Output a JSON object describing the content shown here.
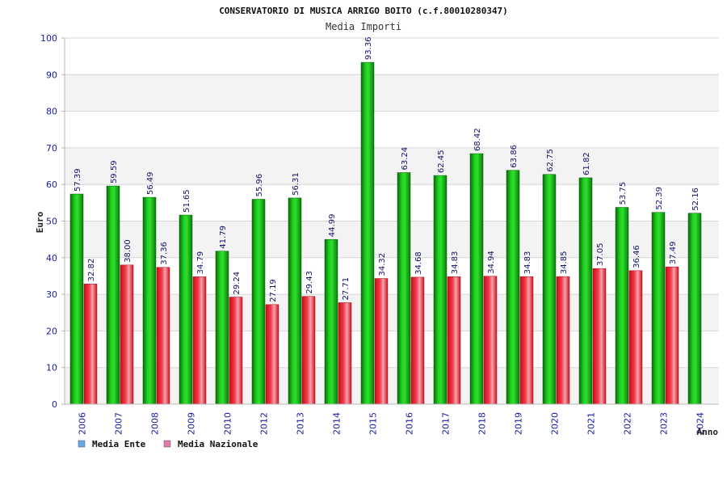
{
  "chart_data": {
    "type": "bar",
    "title": "CONSERVATORIO DI MUSICA ARRIGO BOITO (c.f.80010280347)",
    "subtitle": "Media Importi",
    "ylabel": "Euro",
    "xlabel": "Anno",
    "ylim": [
      0,
      100
    ],
    "yticks": [
      "0",
      "10",
      "20",
      "30",
      "40",
      "50",
      "60",
      "70",
      "80",
      "90",
      "100"
    ],
    "grid": true,
    "legend_position": "bottom-left",
    "categories": [
      "2006",
      "2007",
      "2008",
      "2009",
      "2010",
      "2012",
      "2013",
      "2014",
      "2015",
      "2016",
      "2017",
      "2018",
      "2019",
      "2020",
      "2021",
      "2022",
      "2023",
      "2024"
    ],
    "series": [
      {
        "name": "Media Ente",
        "color": "#22bb22",
        "legend_color": "#6aa7e8",
        "values": [
          57.39,
          59.59,
          56.49,
          51.65,
          41.79,
          55.96,
          56.31,
          44.99,
          93.36,
          63.24,
          62.45,
          68.42,
          63.86,
          62.75,
          61.82,
          53.75,
          52.39,
          52.16
        ],
        "labels": [
          "57.39",
          "59.59",
          "56.49",
          "51.65",
          "41.79",
          "55.96",
          "56.31",
          "44.99",
          "93.36",
          "63.24",
          "62.45",
          "68.42",
          "63.86",
          "62.75",
          "61.82",
          "53.75",
          "52.39",
          "52.16"
        ]
      },
      {
        "name": "Media Nazionale",
        "color": "#e8182a",
        "legend_color": "#e07aa8",
        "values": [
          32.82,
          38.0,
          37.36,
          34.79,
          29.24,
          27.19,
          29.43,
          27.71,
          34.32,
          34.68,
          34.83,
          34.94,
          34.83,
          34.85,
          37.05,
          36.46,
          37.49,
          null
        ],
        "labels": [
          "32.82",
          "38.00",
          "37.36",
          "34.79",
          "29.24",
          "27.19",
          "29.43",
          "27.71",
          "34.32",
          "34.68",
          "34.83",
          "34.94",
          "34.83",
          "34.85",
          "37.05",
          "36.46",
          "37.49",
          ""
        ]
      }
    ]
  }
}
